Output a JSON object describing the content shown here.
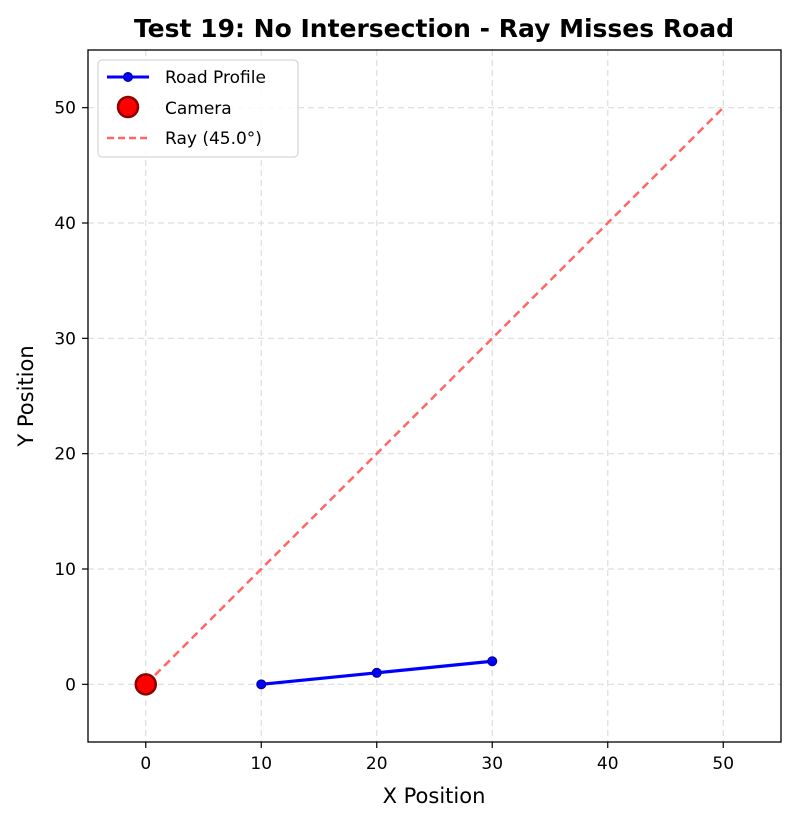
{
  "chart_data": {
    "type": "line",
    "title": "Test 19: No Intersection - Ray Misses Road",
    "xlabel": "X Position",
    "ylabel": "Y Position",
    "xlim": [
      -5,
      55
    ],
    "ylim": [
      -5,
      55
    ],
    "xticks": [
      0,
      10,
      20,
      30,
      40,
      50
    ],
    "yticks": [
      0,
      10,
      20,
      30,
      40,
      50
    ],
    "grid": true,
    "legend_position": "top-left",
    "series": [
      {
        "name": "Road Profile",
        "kind": "line-markers",
        "color": "#0000ff",
        "x": [
          10,
          20,
          30
        ],
        "y": [
          0,
          1,
          2
        ]
      },
      {
        "name": "Camera",
        "kind": "marker",
        "color": "#ff0000",
        "edgecolor": "#8b0000",
        "x": [
          0
        ],
        "y": [
          0
        ]
      },
      {
        "name": "Ray (45.0°)",
        "kind": "dashed-line",
        "color": "#ff6666",
        "x": [
          0,
          50
        ],
        "y": [
          0,
          50
        ]
      }
    ]
  }
}
